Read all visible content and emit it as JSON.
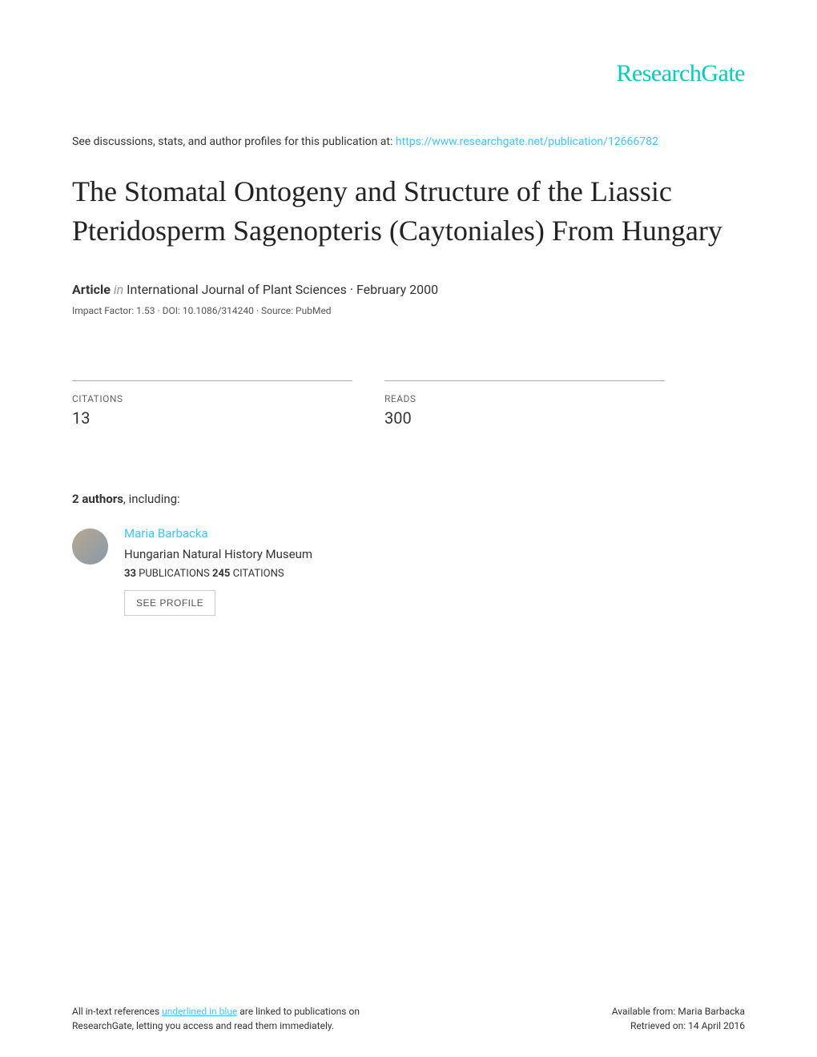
{
  "logo": {
    "text": "ResearchGate",
    "color": "#00ccbb"
  },
  "discussion": {
    "prefix": "See discussions, stats, and author profiles for this publication at: ",
    "url": "https://www.researchgate.net/publication/12666782"
  },
  "title": "The Stomatal Ontogeny and Structure of the Liassic Pteridosperm Sagenopteris (Caytoniales) From Hungary",
  "article_meta": {
    "type_label": "Article",
    "in_label": "in",
    "journal": "International Journal of Plant Sciences",
    "date": "February 2000"
  },
  "impact": "Impact Factor: 1.53 · DOI: 10.1086/314240 · Source: PubMed",
  "stats": {
    "citations": {
      "label": "CITATIONS",
      "value": "13"
    },
    "reads": {
      "label": "READS",
      "value": "300"
    }
  },
  "authors_heading": {
    "count": "2 authors",
    "suffix": ", including:"
  },
  "author": {
    "name": "Maria Barbacka",
    "affiliation": "Hungarian Natural History Museum",
    "publications_count": "33",
    "publications_label": " PUBLICATIONS   ",
    "citations_count": "245",
    "citations_label": " CITATIONS",
    "see_profile": "SEE PROFILE"
  },
  "footer": {
    "left_prefix": "All in-text references ",
    "left_underlined": "underlined in blue",
    "left_suffix": " are linked to publications on ResearchGate, letting you access and read them immediately.",
    "right_available": "Available from: Maria Barbacka",
    "right_retrieved": "Retrieved on: 14 April 2016"
  },
  "colors": {
    "link": "#40c4ff",
    "brand": "#00ccbb",
    "text": "#333333",
    "border": "#aaaaaa"
  }
}
